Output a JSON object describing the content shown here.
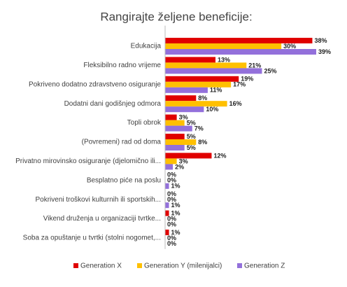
{
  "chart_data": {
    "type": "bar",
    "orientation": "horizontal",
    "title": "Rangirajte željene beneficije:",
    "categories": [
      "Edukacija",
      "Fleksibilno radno vrijeme",
      "Pokriveno dodatno zdravstveno osiguranje",
      "Dodatni dani godišnjeg odmora",
      "Topli obrok",
      "(Povremeni) rad od doma",
      "Privatno mirovinsko osiguranje (djelomično ili...",
      "Besplatno piće na poslu",
      "Pokriveni troškovi kulturnih ili sportskih...",
      "Vikend druženja u organizaciji tvrtke...",
      "Soba za opuštanje u tvrtki (stolni nogomet,..."
    ],
    "series": [
      {
        "name": "Generation X",
        "color": "#e00000",
        "values": [
          38,
          13,
          19,
          8,
          3,
          5,
          12,
          0,
          0,
          1,
          1
        ],
        "value_labels": [
          "38%",
          "13%",
          "19%",
          "8%",
          "3%",
          "5%",
          "12%",
          "0%",
          "0%",
          "1%",
          "1%"
        ]
      },
      {
        "name": "Generation Y (milenijalci)",
        "color": "#ffc000",
        "values": [
          30,
          21,
          17,
          16,
          5,
          8,
          3,
          0,
          0,
          0,
          0
        ],
        "value_labels": [
          "30%",
          "21%",
          "17%",
          "16%",
          "5%",
          "8%",
          "3%",
          "0%",
          "0%",
          "0%",
          "0%"
        ]
      },
      {
        "name": "Generation Z",
        "color": "#9370db",
        "values": [
          39,
          25,
          11,
          10,
          7,
          5,
          2,
          1,
          1,
          0,
          0
        ],
        "value_labels": [
          "39%",
          "25%",
          "11%",
          "10%",
          "7%",
          "5%",
          "2%",
          "1%",
          "1%",
          "0%",
          "0%"
        ]
      }
    ],
    "legend": "bottom"
  }
}
